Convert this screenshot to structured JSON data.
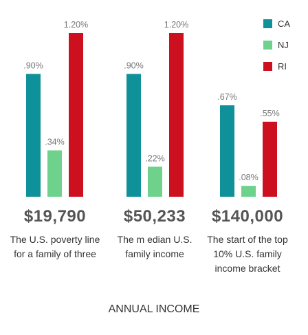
{
  "chart_data": {
    "type": "bar",
    "xlabel": "ANNUAL INCOME",
    "legend_position": "top-right",
    "categories": [
      {
        "amount": "$19,790",
        "description": "The U.S. poverty line for a family of three"
      },
      {
        "amount": "$50,233",
        "description": "The m edian U.S. family income"
      },
      {
        "amount": "$140,000",
        "description": "The start of the top 10% U.S. family income bracket"
      }
    ],
    "series": [
      {
        "name": "CA",
        "color": "#0e9198",
        "values": [
          0.9,
          0.9,
          0.67
        ],
        "labels": [
          ".90%",
          ".90%",
          ".67%"
        ]
      },
      {
        "name": "NJ",
        "color": "#6fd28c",
        "values": [
          0.34,
          0.22,
          0.08
        ],
        "labels": [
          ".34%",
          ".22%",
          ".08%"
        ]
      },
      {
        "name": "RI",
        "color": "#cc1020",
        "values": [
          1.2,
          1.2,
          0.55
        ],
        "labels": [
          "1.20%",
          "1.20%",
          ".55%"
        ]
      }
    ],
    "ylim": [
      0,
      1.2
    ],
    "grid": false
  }
}
